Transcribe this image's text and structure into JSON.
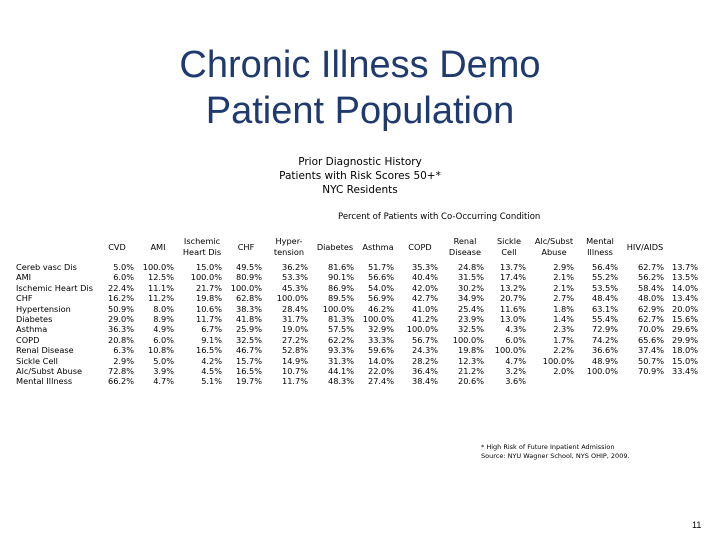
{
  "title": {
    "line1": "Chronic Illness Demo",
    "line2": "Patient Population"
  },
  "subtitle": {
    "line1": "Prior Diagnostic History",
    "line2": "Patients with Risk Scores 50+*",
    "line3": "NYC Residents"
  },
  "caption": "Percent of Patients with Co-Occurring Condition",
  "columns": [
    "",
    "CVD",
    "AMI",
    "Ischemic Heart Dis",
    "CHF",
    "Hyper-tension",
    "Diabetes",
    "Asthma",
    "COPD",
    "Renal Disease",
    "Sickle Cell",
    "Alc/Subst Abuse",
    "Mental Illness",
    "HIV/AIDS"
  ],
  "rows": [
    {
      "label": "Cereb vasc Dis",
      "values": [
        "5.0%",
        "100.0%",
        "15.0%",
        "49.5%",
        "36.2%",
        "81.6%",
        "51.7%",
        "35.3%",
        "24.8%",
        "13.7%",
        "2.9%",
        "56.4%",
        "62.7%",
        "13.7%"
      ]
    },
    {
      "label": "AMI",
      "values": [
        "6.0%",
        "12.5%",
        "100.0%",
        "80.9%",
        "53.3%",
        "90.1%",
        "56.6%",
        "40.4%",
        "31.5%",
        "17.4%",
        "2.1%",
        "55.2%",
        "56.2%",
        "13.5%"
      ]
    },
    {
      "label": "Ischemic Heart Dis",
      "values": [
        "22.4%",
        "11.1%",
        "21.7%",
        "100.0%",
        "45.3%",
        "86.9%",
        "54.0%",
        "42.0%",
        "30.2%",
        "13.2%",
        "2.1%",
        "53.5%",
        "58.4%",
        "14.0%"
      ]
    },
    {
      "label": "CHF",
      "values": [
        "16.2%",
        "11.2%",
        "19.8%",
        "62.8%",
        "100.0%",
        "89.5%",
        "56.9%",
        "42.7%",
        "34.9%",
        "20.7%",
        "2.7%",
        "48.4%",
        "48.0%",
        "13.4%"
      ]
    },
    {
      "label": "Hypertension",
      "values": [
        "50.9%",
        "8.0%",
        "10.6%",
        "38.3%",
        "28.4%",
        "100.0%",
        "46.2%",
        "41.0%",
        "25.4%",
        "11.6%",
        "1.8%",
        "63.1%",
        "62.9%",
        "20.0%"
      ]
    },
    {
      "label": "Diabetes",
      "values": [
        "29.0%",
        "8.9%",
        "11.7%",
        "41.8%",
        "31.7%",
        "81.3%",
        "100.0%",
        "41.2%",
        "23.9%",
        "13.0%",
        "1.4%",
        "55.4%",
        "62.7%",
        "15.6%"
      ]
    },
    {
      "label": "Asthma",
      "values": [
        "36.3%",
        "4.9%",
        "6.7%",
        "25.9%",
        "19.0%",
        "57.5%",
        "32.9%",
        "100.0%",
        "32.5%",
        "4.3%",
        "2.3%",
        "72.9%",
        "70.0%",
        "29.6%"
      ]
    },
    {
      "label": "COPD",
      "values": [
        "20.8%",
        "6.0%",
        "9.1%",
        "32.5%",
        "27.2%",
        "62.2%",
        "33.3%",
        "56.7%",
        "100.0%",
        "6.0%",
        "1.7%",
        "74.2%",
        "65.6%",
        "29.9%"
      ]
    },
    {
      "label": "Renal Disease",
      "values": [
        "6.3%",
        "10.8%",
        "16.5%",
        "46.7%",
        "52.8%",
        "93.3%",
        "59.6%",
        "24.3%",
        "19.8%",
        "100.0%",
        "2.2%",
        "36.6%",
        "37.4%",
        "18.0%"
      ]
    },
    {
      "label": "Sickle Cell",
      "values": [
        "2.9%",
        "5.0%",
        "4.2%",
        "15.7%",
        "14.9%",
        "31.3%",
        "14.0%",
        "28.2%",
        "12.3%",
        "4.7%",
        "100.0%",
        "48.9%",
        "50.7%",
        "15.0%"
      ]
    },
    {
      "label": "Alc/Subst Abuse",
      "values": [
        "72.8%",
        "3.9%",
        "4.5%",
        "16.5%",
        "10.7%",
        "44.1%",
        "22.0%",
        "36.4%",
        "21.2%",
        "3.2%",
        "2.0%",
        "100.0%",
        "70.9%",
        "33.4%"
      ]
    },
    {
      "label": "Mental Illness",
      "values": [
        "66.2%",
        "4.7%",
        "5.1%",
        "19.7%",
        "11.7%",
        "48.3%",
        "27.4%",
        "38.4%",
        "20.6%",
        "3.6%",
        "",
        "",
        "",
        ""
      ]
    }
  ],
  "footnote": {
    "line1": "* High Risk of Future Inpatient Admission",
    "line2": "Source: NYU Wagner School, NYS OHIP, 2009."
  },
  "page_number": "11"
}
